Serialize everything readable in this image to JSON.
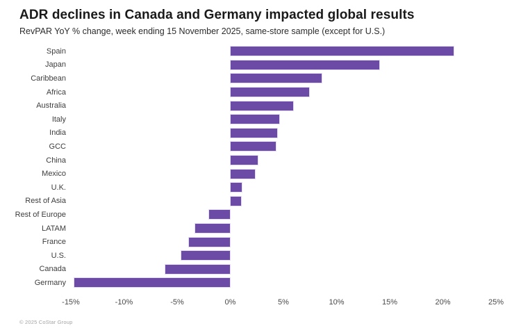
{
  "header": {
    "title": "ADR declines in Canada and Germany impacted global results",
    "subtitle": "RevPAR YoY % change, week ending 15 November 2025, same-store sample (except for U.S.)"
  },
  "footer": {
    "copyright": "© 2025 CoStar Group"
  },
  "colors": {
    "bar": "#6b4ba6",
    "title_text": "#1a1a1a",
    "axis_text": "#4a4a4a",
    "background": "#ffffff"
  },
  "chart_data": {
    "type": "bar",
    "orientation": "horizontal",
    "title": "ADR declines in Canada and Germany impacted global results",
    "subtitle": "RevPAR YoY % change, week ending 15 November 2025, same-store sample (except for U.S.)",
    "xlabel": "",
    "ylabel": "",
    "unit": "%",
    "xlim": [
      -15,
      25
    ],
    "grid": false,
    "legend": false,
    "categories": [
      "Spain",
      "Japan",
      "Caribbean",
      "Africa",
      "Australia",
      "Italy",
      "India",
      "GCC",
      "China",
      "Mexico",
      "U.K.",
      "Rest of Asia",
      "Rest of Europe",
      "LATAM",
      "France",
      "U.S.",
      "Canada",
      "Germany"
    ],
    "values": [
      21.0,
      14.0,
      8.6,
      7.4,
      5.9,
      4.6,
      4.4,
      4.3,
      2.6,
      2.3,
      1.1,
      1.0,
      -2.0,
      -3.3,
      -3.9,
      -4.6,
      -6.1,
      -14.7
    ],
    "x_tick_values": [
      -15,
      -10,
      -5,
      0,
      5,
      10,
      15,
      20,
      25
    ],
    "x_tick_labels": [
      "-15%",
      "-10%",
      "-5%",
      "0%",
      "5%",
      "10%",
      "15%",
      "20%",
      "25%"
    ]
  }
}
